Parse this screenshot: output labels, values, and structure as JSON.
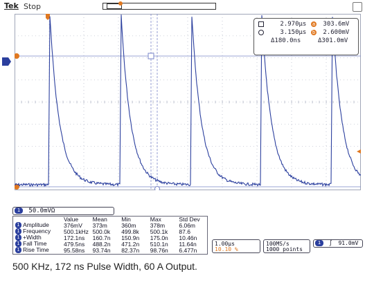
{
  "header": {
    "brand": "Tek",
    "run_state": "Stop"
  },
  "plot": {
    "colors": {
      "trace": "#2b3f9e",
      "grid": "#a0a6b8",
      "cursor": "#7a86c8",
      "marker": "#e07820"
    }
  },
  "markers": {
    "trigger_top": "T",
    "ch1": "1"
  },
  "cursor_readout": {
    "t1": "2.970µs",
    "t2": "3.150µs",
    "dt": "Δ180.0ns",
    "v1": "303.6mV",
    "v2": "2.600mV",
    "dv": "Δ301.0mV",
    "badge_a": "a",
    "badge_b": "b"
  },
  "channel": {
    "number": "1",
    "scale": "50.0mVΩ"
  },
  "measurements": {
    "headers": [
      "",
      "Value",
      "Mean",
      "Min",
      "Max",
      "Std Dev"
    ],
    "rows": [
      {
        "label": "Amplitude",
        "value": "376mV",
        "mean": "373m",
        "min": "360m",
        "max": "378m",
        "std": "6.06m"
      },
      {
        "label": "Frequency",
        "value": "500.1kHz",
        "mean": "500.0k",
        "min": "499.8k",
        "max": "500.1k",
        "std": "87.6"
      },
      {
        "label": "+Width",
        "value": "172.1ns",
        "mean": "160.7n",
        "min": "150.9n",
        "max": "175.0n",
        "std": "10.46n"
      },
      {
        "label": "Fall Time",
        "value": "479.5ns",
        "mean": "488.2n",
        "min": "471.2n",
        "max": "510.1n",
        "std": "11.64n"
      },
      {
        "label": "Rise Time",
        "value": "95.58ns",
        "mean": "93.74n",
        "min": "82.37n",
        "max": "98.76n",
        "std": "6.477n"
      }
    ]
  },
  "timebase": {
    "scale": "1.00µs",
    "position": "10.10 %"
  },
  "acquisition": {
    "rate": "100MS/s",
    "points": "1000 points"
  },
  "trigger": {
    "source": "1",
    "slope_icon": "rising-edge-icon",
    "level": "91.0mV"
  },
  "caption": "500 KHz, 172 ns Pulse Width, 60 A Output."
}
